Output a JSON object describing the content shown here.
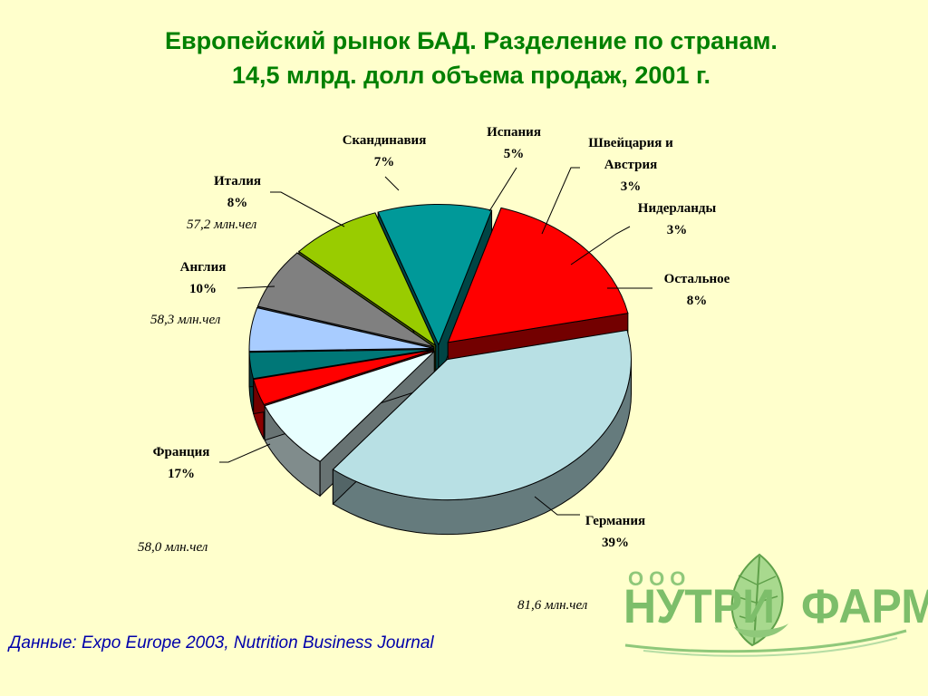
{
  "title": {
    "line1": "Европейский рынок БАД. Разделение по странам.",
    "line2": "14,5 млрд. долл объема продаж, 2001 г."
  },
  "chart_data": {
    "type": "pie",
    "categories": [
      "Германия",
      "Остальное",
      "Нидерланды",
      "Швейцария и Австрия",
      "Испания",
      "Скандинавия",
      "Италия",
      "Англия",
      "Франция"
    ],
    "values": [
      39,
      8,
      3,
      3,
      5,
      7,
      8,
      10,
      17
    ],
    "value_labels": [
      "39%",
      "8%",
      "3%",
      "3%",
      "5%",
      "7%",
      "8%",
      "10%",
      "17%"
    ],
    "label_lines": [
      [
        "Германия"
      ],
      [
        "Остальное"
      ],
      [
        "Нидерланды"
      ],
      [
        "Швейцария и",
        "Австрия"
      ],
      [
        "Испания"
      ],
      [
        "Скандинавия"
      ],
      [
        "Италия"
      ],
      [
        "Англия"
      ],
      [
        "Франция"
      ]
    ],
    "colors": [
      "#B8E0E4",
      "#E8FFFF",
      "#FF0000",
      "#007777",
      "#A8CCFF",
      "#808080",
      "#99CC00",
      "#009999",
      "#FF0000"
    ],
    "style": "3d-exploded"
  },
  "population_notes": {
    "italy": "57,2 млн.чел",
    "england": "58,3 млн.чел",
    "france": "58,0 млн.чел",
    "germany": "81,6 млн.чел"
  },
  "source": "Данные: Expo Europe 2003, Nutrition Business Journal",
  "logo": {
    "ooo": "ООО",
    "left": "НУТРИ",
    "right": "ФАРМ"
  }
}
